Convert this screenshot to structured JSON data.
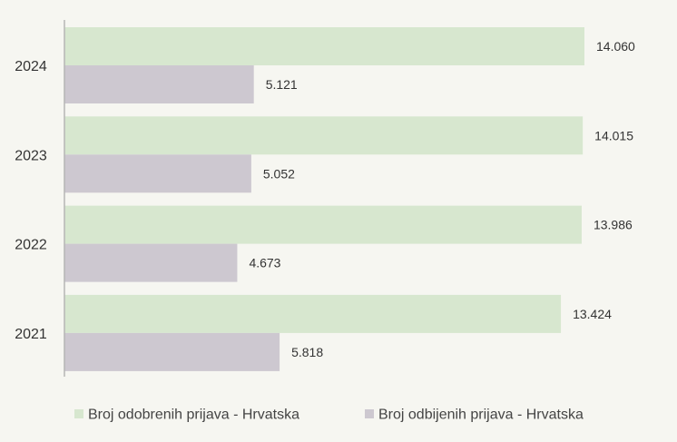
{
  "chart_data": {
    "type": "bar",
    "orientation": "horizontal",
    "categories": [
      "2024",
      "2023",
      "2022",
      "2021"
    ],
    "series": [
      {
        "name": "Broj odobrenih prijava - Hrvatska",
        "color": "#d7e7cf",
        "values": [
          14060,
          14015,
          13986,
          13424
        ],
        "value_labels": [
          "14.060",
          "14.015",
          "13.986",
          "13.424"
        ]
      },
      {
        "name": "Broj odbijenih prijava - Hrvatska",
        "color": "#cdc8d0",
        "values": [
          5121,
          5052,
          4673,
          5818
        ],
        "value_labels": [
          "5.121",
          "5.052",
          "4.673",
          "5.818"
        ]
      }
    ],
    "xlim": [
      0,
      16000
    ],
    "grid": false,
    "legend": "bottom"
  }
}
